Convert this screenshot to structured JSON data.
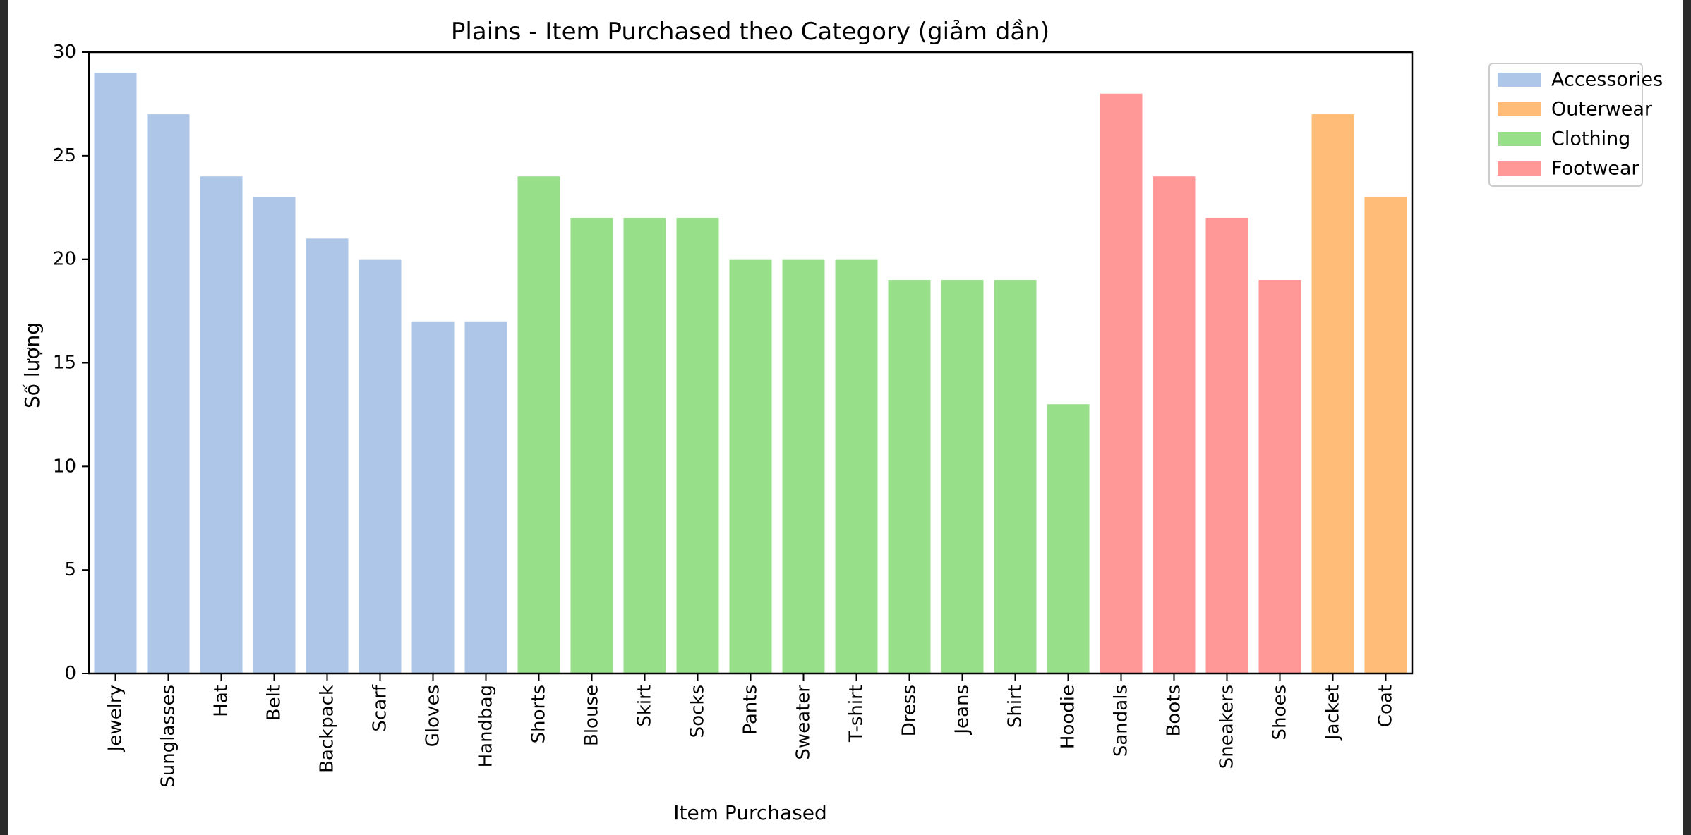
{
  "chart_data": {
    "type": "bar",
    "title": "Plains - Item Purchased theo Category (giảm dần)",
    "xlabel": "Item Purchased",
    "ylabel": "Số lượng",
    "ylim": [
      0,
      30
    ],
    "yticks": [
      0,
      5,
      10,
      15,
      20,
      25,
      30
    ],
    "grid": false,
    "legend_position": "outside-top-right",
    "legend": [
      {
        "name": "Accessories",
        "color": "#aec7e8"
      },
      {
        "name": "Outerwear",
        "color": "#ffbb78"
      },
      {
        "name": "Clothing",
        "color": "#98df8a"
      },
      {
        "name": "Footwear",
        "color": "#ff9896"
      }
    ],
    "categories": [
      "Jewelry",
      "Sunglasses",
      "Hat",
      "Belt",
      "Backpack",
      "Scarf",
      "Gloves",
      "Handbag",
      "Shorts",
      "Blouse",
      "Skirt",
      "Socks",
      "Pants",
      "Sweater",
      "T-shirt",
      "Dress",
      "Jeans",
      "Shirt",
      "Hoodie",
      "Sandals",
      "Boots",
      "Sneakers",
      "Shoes",
      "Jacket",
      "Coat"
    ],
    "values": [
      29,
      27,
      24,
      23,
      21,
      20,
      17,
      17,
      24,
      22,
      22,
      22,
      20,
      20,
      20,
      19,
      19,
      19,
      13,
      28,
      24,
      22,
      19,
      27,
      23
    ],
    "groups": [
      "Accessories",
      "Accessories",
      "Accessories",
      "Accessories",
      "Accessories",
      "Accessories",
      "Accessories",
      "Accessories",
      "Clothing",
      "Clothing",
      "Clothing",
      "Clothing",
      "Clothing",
      "Clothing",
      "Clothing",
      "Clothing",
      "Clothing",
      "Clothing",
      "Clothing",
      "Footwear",
      "Footwear",
      "Footwear",
      "Footwear",
      "Outerwear",
      "Outerwear"
    ]
  }
}
